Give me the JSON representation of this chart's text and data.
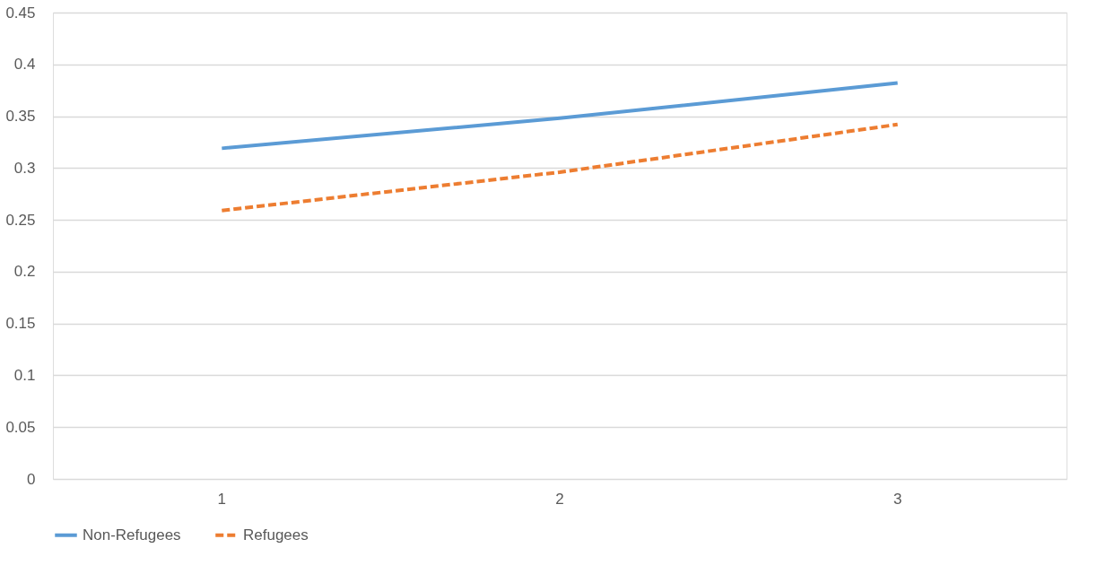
{
  "chart_data": {
    "type": "line",
    "categories": [
      "1",
      "2",
      "3"
    ],
    "series": [
      {
        "name": "Non-Refugees",
        "color": "#5b9bd5",
        "line_style": "solid",
        "values": [
          0.319,
          0.348,
          0.382
        ]
      },
      {
        "name": "Refugees",
        "color": "#ed7d31",
        "line_style": "dashed",
        "values": [
          0.259,
          0.296,
          0.342
        ]
      }
    ],
    "ylim": [
      0,
      0.45
    ],
    "yticks": [
      0,
      0.05,
      0.1,
      0.15,
      0.2,
      0.25,
      0.3,
      0.35,
      0.4,
      0.45
    ],
    "grid": "y",
    "legend": "bottom"
  }
}
